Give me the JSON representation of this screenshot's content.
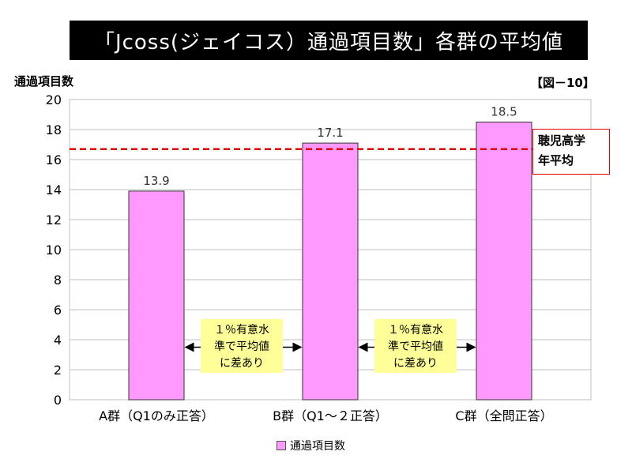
{
  "title": "「Jcoss(ジェイコス）通過項目数」各群の平均値",
  "figure_label": "【図－10】",
  "reference_line": {
    "label_line1": "聴児高学",
    "label_line2": "年平均",
    "value": 16.7,
    "color": "#e00000"
  },
  "notes": [
    {
      "line1": "１％有意水",
      "line2": "準で平均値",
      "line3": "に差あり"
    },
    {
      "line1": "１％有意水",
      "line2": "準で平均値",
      "line3": "に差あり"
    }
  ],
  "colors": {
    "bar": "#ff99ff",
    "bar_border": "#333333",
    "grid": "#bfbfbf"
  },
  "chart_data": {
    "type": "bar",
    "ylabel": "通過項目数",
    "categories": [
      "A群（Q1のみ正答）",
      "B群（Q1～２正答）",
      "C群（全問正答）"
    ],
    "series": [
      {
        "name": "通過項目数",
        "values": [
          13.9,
          17.1,
          18.5
        ]
      }
    ],
    "data_labels": [
      "13.9",
      "17.1",
      "18.5"
    ],
    "ylim": [
      0,
      20
    ],
    "yticks": [
      0,
      2,
      4,
      6,
      8,
      10,
      12,
      14,
      16,
      18,
      20
    ],
    "grid": true,
    "legend": "bottom"
  }
}
